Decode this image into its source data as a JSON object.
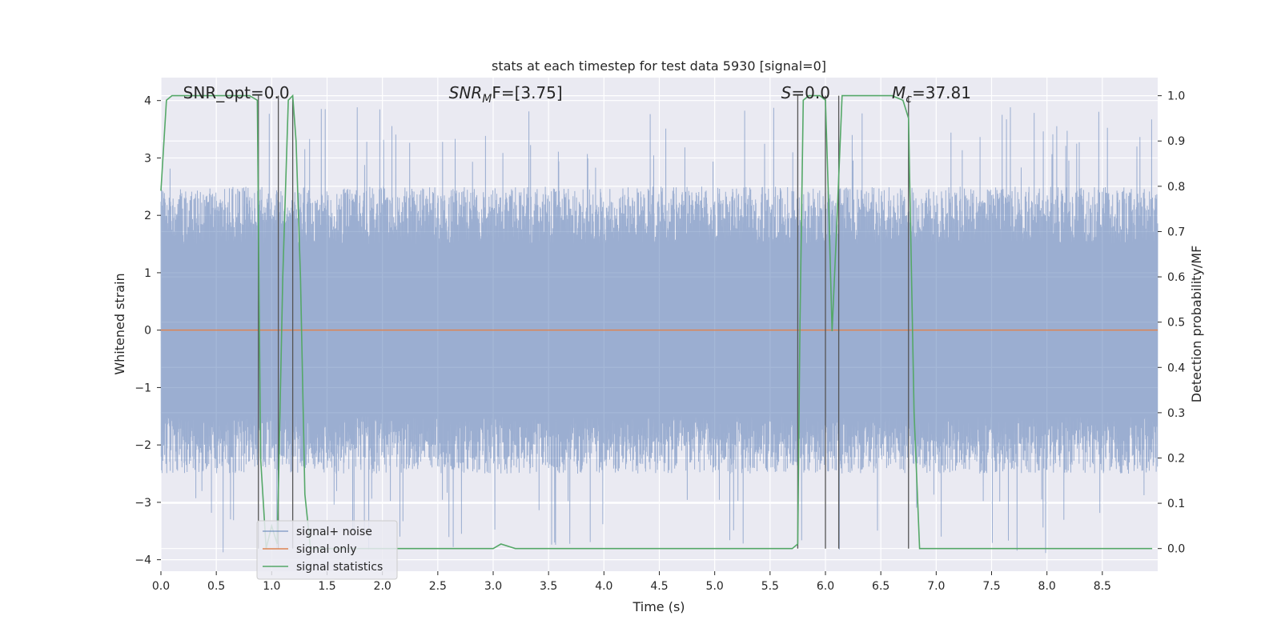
{
  "chart_data": {
    "type": "line",
    "title": "stats at each timestep for test data 5930 [signal=0]",
    "xlabel": "Time (s)",
    "ylabel": "Whitened strain",
    "y2label": "Detection probability/MF",
    "xlim": [
      0.0,
      9.0
    ],
    "ylim": [
      -4.2,
      4.4
    ],
    "y2lim": [
      -0.05,
      1.04
    ],
    "x_ticks": [
      0.0,
      0.5,
      1.0,
      1.5,
      2.0,
      2.5,
      3.0,
      3.5,
      4.0,
      4.5,
      5.0,
      5.5,
      6.0,
      6.5,
      7.0,
      7.5,
      8.0,
      8.5
    ],
    "y_ticks": [
      -4,
      -3,
      -2,
      -1,
      0,
      1,
      2,
      3,
      4
    ],
    "y2_ticks": [
      0.0,
      0.1,
      0.2,
      0.3,
      0.4,
      0.5,
      0.6,
      0.7,
      0.8,
      0.9,
      1.0
    ],
    "grid": true,
    "legend_position": "lower-left",
    "colors": {
      "noise": "#4c72b0",
      "signal": "#dd8452",
      "stats": "#55a868",
      "background": "#eaeaf2",
      "vline": "#555555"
    },
    "annotations": [
      {
        "text": "SNR_opt=0.0",
        "x": 0.2
      },
      {
        "text": "SNR",
        "sub": "M",
        "tail": "F=[3.75]",
        "x": 2.6,
        "italic": true
      },
      {
        "text": "S",
        "tail": "=0.0",
        "x": 5.6,
        "italic": true
      },
      {
        "text": "M",
        "sub": "c",
        "tail": "=37.81",
        "x": 6.6,
        "italic": true
      }
    ],
    "vlines": [
      0.88,
      1.06,
      1.19,
      5.75,
      6.0,
      6.12,
      6.75
    ],
    "noise_envelope": {
      "typical_abs": [
        1.5,
        2.5
      ],
      "peak_max": 4.0,
      "peak_min": -3.9
    },
    "series": [
      {
        "name": "signal+ noise",
        "kind": "noise"
      },
      {
        "name": "signal only",
        "kind": "signal",
        "x": [
          0.0,
          9.0
        ],
        "y": [
          0.0,
          0.0
        ]
      },
      {
        "name": "signal statistics",
        "kind": "stats",
        "axis": "y2",
        "x": [
          0.0,
          0.05,
          0.1,
          0.2,
          0.4,
          0.6,
          0.8,
          0.87,
          0.9,
          0.95,
          1.0,
          1.05,
          1.1,
          1.15,
          1.19,
          1.22,
          1.26,
          1.3,
          1.35,
          1.45,
          2.0,
          2.5,
          3.0,
          3.07,
          3.2,
          3.5,
          4.0,
          4.5,
          5.0,
          5.5,
          5.7,
          5.75,
          5.77,
          5.8,
          5.85,
          5.95,
          6.0,
          6.03,
          6.06,
          6.1,
          6.15,
          6.2,
          6.4,
          6.6,
          6.7,
          6.75,
          6.8,
          6.85,
          6.9,
          7.5,
          8.0,
          8.5,
          8.95
        ],
        "y": [
          0.79,
          0.99,
          1.0,
          1.0,
          1.0,
          1.0,
          1.0,
          0.99,
          0.2,
          0.0,
          0.05,
          0.01,
          0.6,
          0.99,
          1.0,
          0.9,
          0.6,
          0.12,
          0.0,
          0.0,
          0.0,
          0.0,
          0.0,
          0.01,
          0.0,
          0.0,
          0.0,
          0.0,
          0.0,
          0.0,
          0.0,
          0.01,
          0.5,
          0.99,
          1.0,
          1.0,
          0.99,
          0.75,
          0.48,
          0.7,
          1.0,
          1.0,
          1.0,
          1.0,
          0.99,
          0.95,
          0.3,
          0.0,
          0.0,
          0.0,
          0.0,
          0.0,
          0.0
        ]
      }
    ]
  }
}
